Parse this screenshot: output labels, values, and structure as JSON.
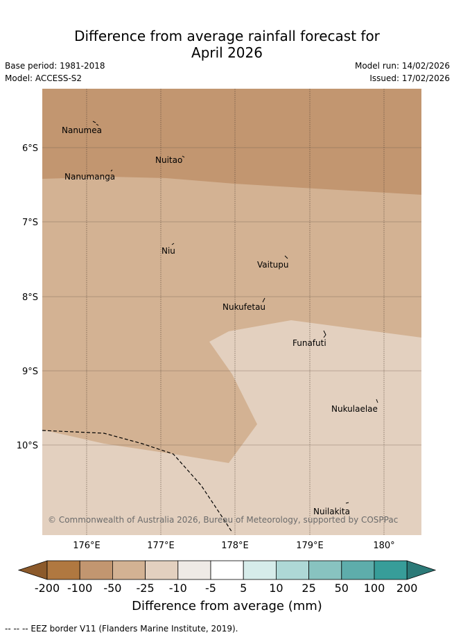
{
  "title_line1": "Difference from average rainfall forecast for",
  "title_line2": "April 2026",
  "base_period": "Base period: 1981-2018",
  "model": "Model: ACCESS-S2",
  "model_run": "Model run: 14/02/2026",
  "issued": "Issued: 17/02/2026",
  "axes": {
    "lat_labels": [
      "6°S",
      "7°S",
      "8°S",
      "9°S",
      "10°S"
    ],
    "lon_labels": [
      "176°E",
      "177°E",
      "178°E",
      "179°E",
      "180°"
    ]
  },
  "places": [
    {
      "name": "Nanumea"
    },
    {
      "name": "Nuitao"
    },
    {
      "name": "Nanumanga"
    },
    {
      "name": "Niu"
    },
    {
      "name": "Vaitupu"
    },
    {
      "name": "Nukufetau"
    },
    {
      "name": "Funafuti"
    },
    {
      "name": "Nukulaelae"
    },
    {
      "name": "Nuilakita"
    }
  ],
  "copyright": "© Commonwealth of Australia 2026, Bureau of Meteorology, supported by COSPPac",
  "colorbar": {
    "ticks": [
      "-200",
      "-100",
      "-50",
      "-25",
      "-10",
      "-5",
      "5",
      "10",
      "25",
      "50",
      "100",
      "200"
    ],
    "colors": [
      "#8c5a2b",
      "#b07840",
      "#c29670",
      "#d3b293",
      "#e3d0bf",
      "#efeae6",
      "#ffffff",
      "#d6ecea",
      "#aed8d6",
      "#88c3c0",
      "#5eadab",
      "#379d99",
      "#2c7a78"
    ],
    "label": "Difference from average (mm)"
  },
  "footnote": "-- -- -- EEZ border V11 (Flanders Marine Institute, 2019).",
  "field_colors": {
    "dry_strong": "#c29670",
    "dry_moderate": "#d3b293",
    "dry_slight": "#e3d0bf"
  }
}
